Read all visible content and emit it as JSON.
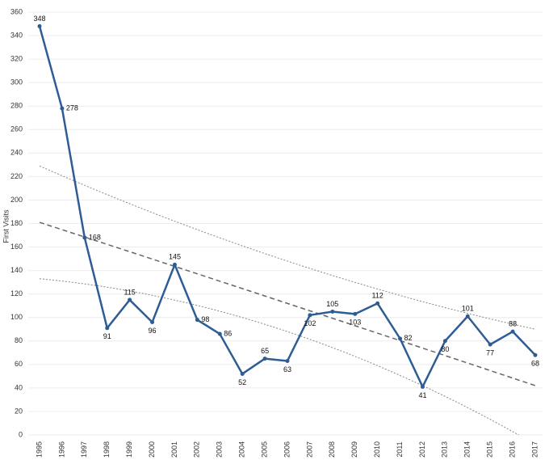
{
  "chart_data": {
    "type": "line",
    "y_label": "First Visits",
    "categories": [
      "1995",
      "1996",
      "1997",
      "1998",
      "1999",
      "2000",
      "2001",
      "2002",
      "2003",
      "2004",
      "2005",
      "2006",
      "2007",
      "2008",
      "2009",
      "2010",
      "2011",
      "2012",
      "2013",
      "2014",
      "2015",
      "2016",
      "2017"
    ],
    "series": [
      {
        "color": "#2e5c95",
        "values": [
          348,
          278,
          168,
          91,
          115,
          96,
          145,
          98,
          86,
          52,
          65,
          63,
          102,
          105,
          103,
          112,
          82,
          41,
          80,
          101,
          77,
          88,
          68
        ]
      }
    ],
    "trend_lines": [
      {
        "style": "dashed",
        "color": "#666666",
        "x": [
          "1995",
          "2006",
          "2017"
        ],
        "values": [
          181,
          112,
          42
        ]
      },
      {
        "style": "dotted",
        "color": "#888888",
        "x": [
          "1995",
          "2006",
          "2017"
        ],
        "values": [
          229,
          148,
          90
        ]
      },
      {
        "style": "dotted",
        "color": "#888888",
        "x": [
          "1995",
          "2006",
          "2017"
        ],
        "values": [
          133,
          88,
          -8
        ]
      }
    ],
    "ylim": [
      0,
      360
    ],
    "yticks": [
      0,
      20,
      40,
      60,
      80,
      100,
      120,
      140,
      160,
      180,
      200,
      220,
      240,
      260,
      280,
      300,
      320,
      340,
      360
    ],
    "grid": true
  }
}
